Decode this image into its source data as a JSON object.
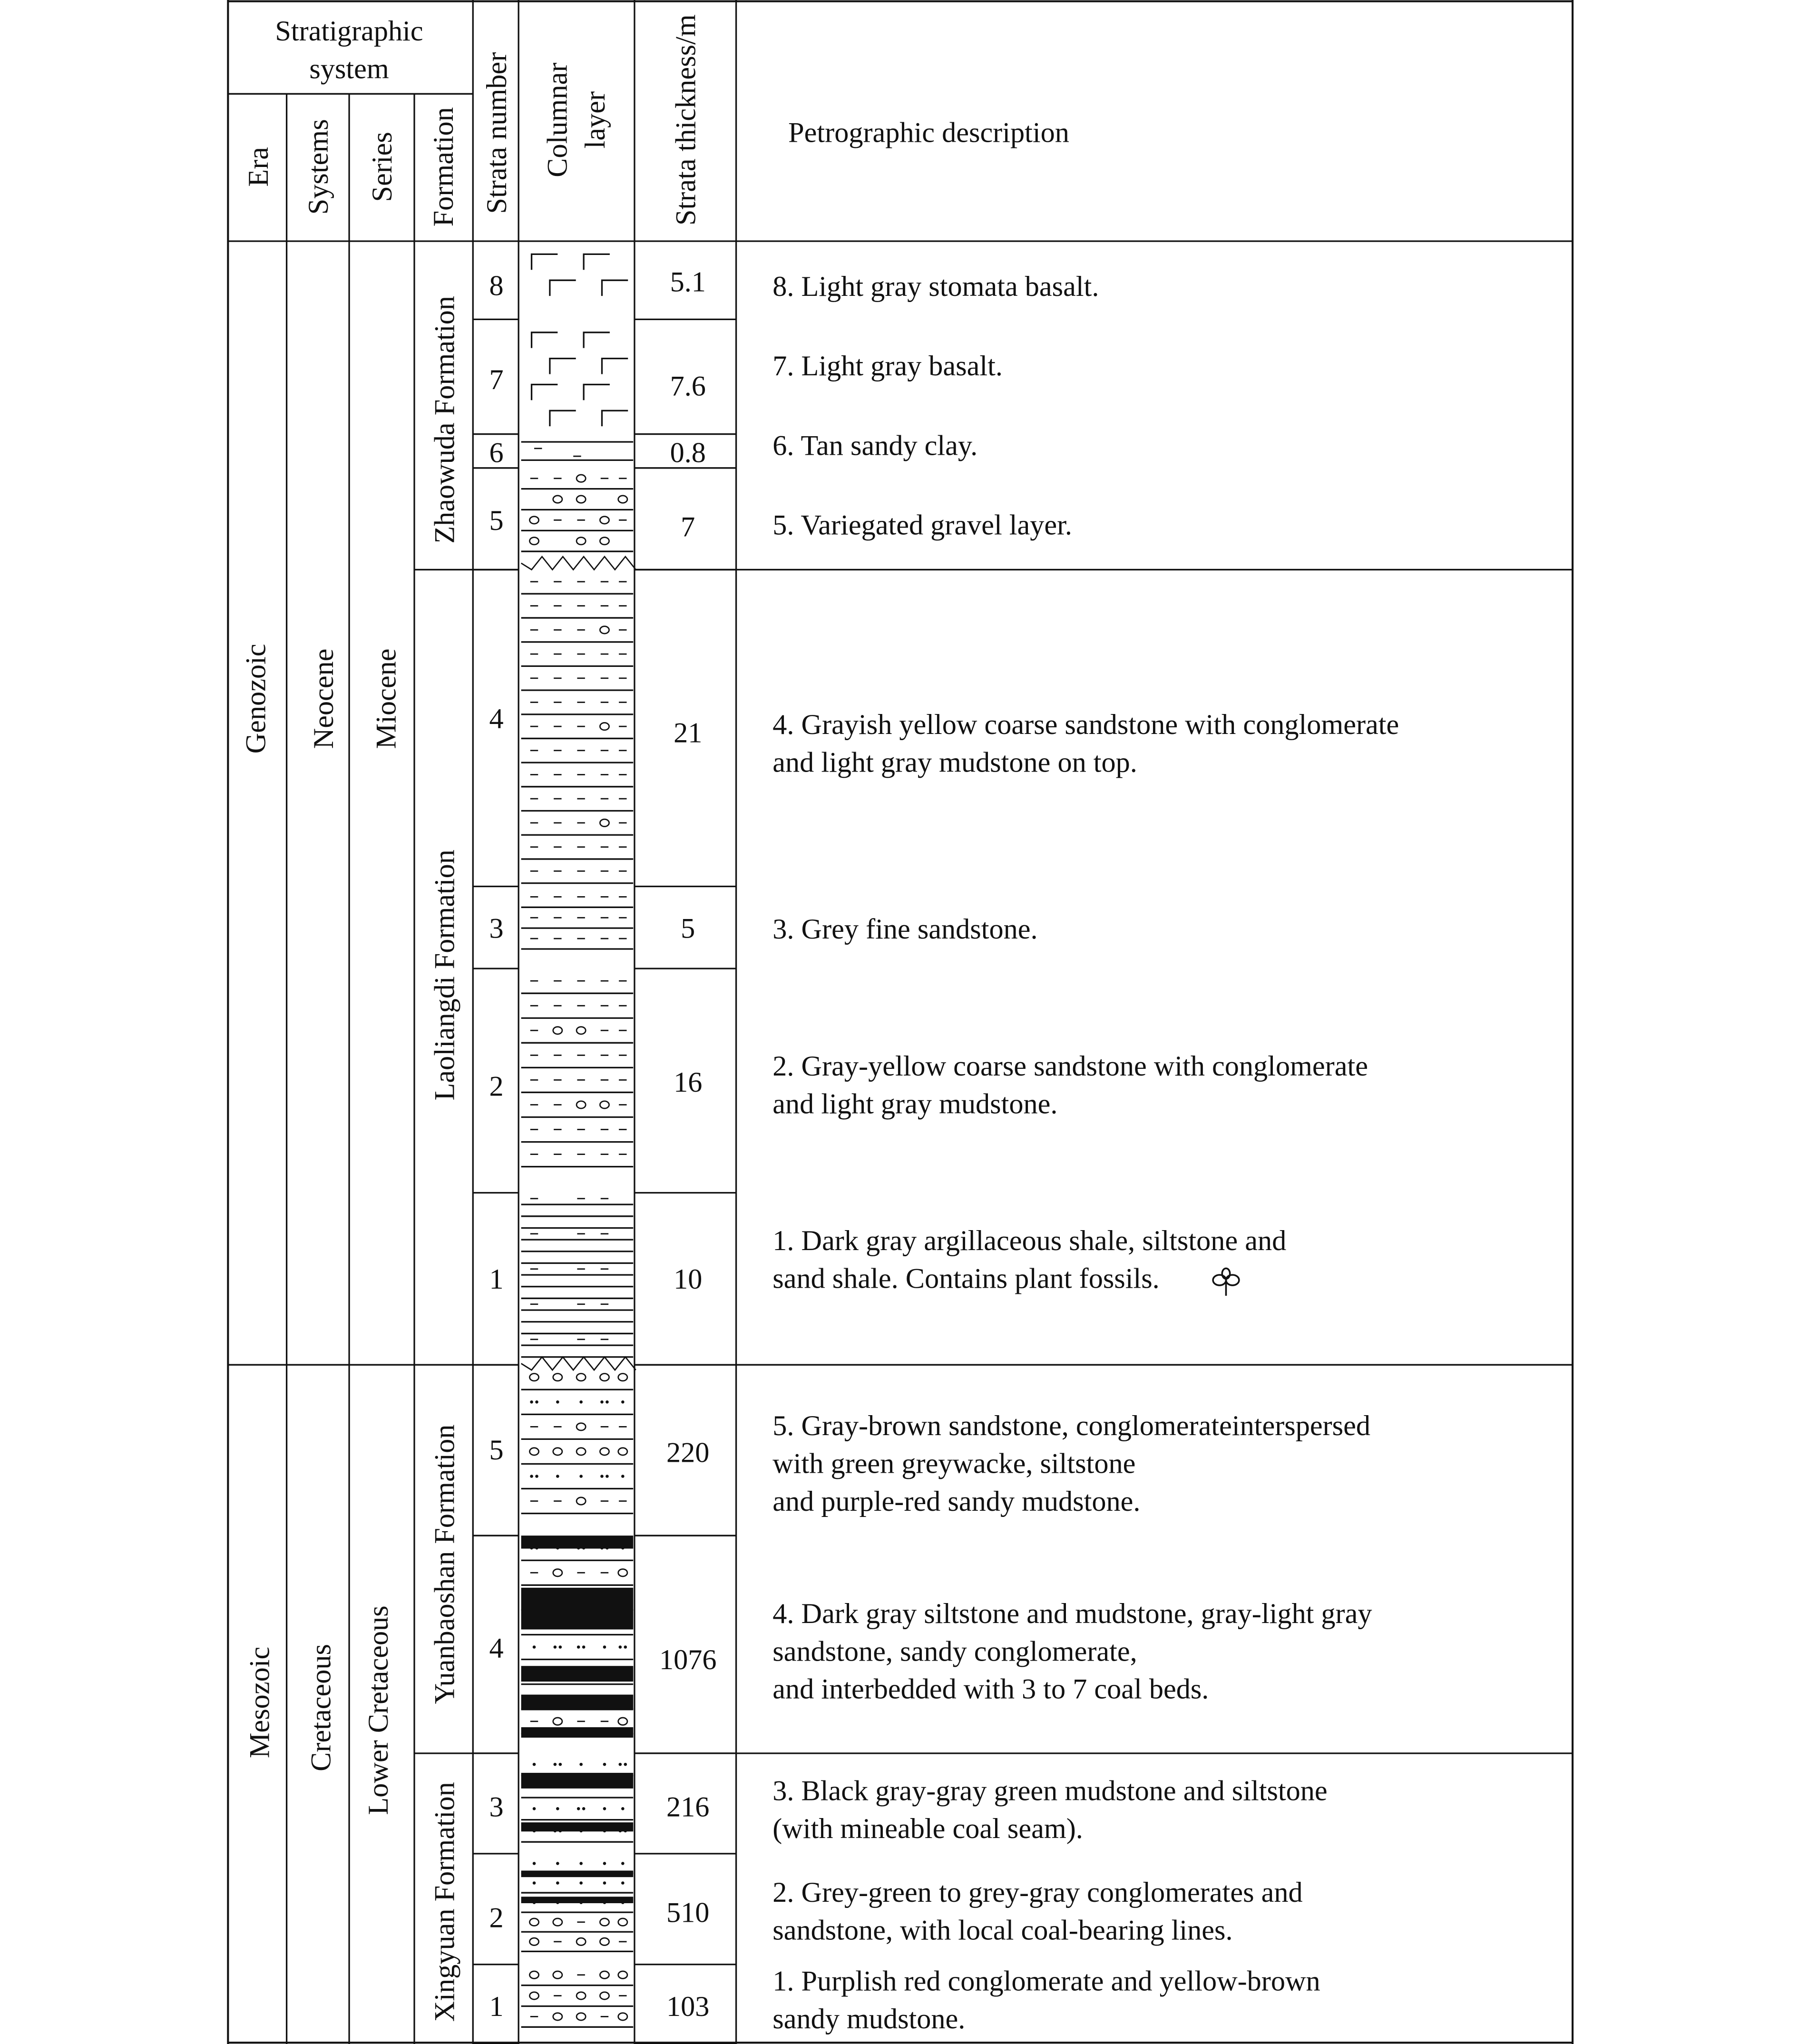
{
  "header": {
    "stratigraphic_system": "Stratigraphic system",
    "era": "Era",
    "systems": "Systems",
    "series": "Series",
    "formation": "Formation",
    "strata_number": "Strata number",
    "columnar_layer": "Columnar layer",
    "strata_thickness": "Strata thickness/m",
    "petrographic_description": "Petrographic description"
  },
  "eras": [
    {
      "era": "Genozoic",
      "system": "Neocene",
      "series": "Miocene"
    },
    {
      "era": "Mesozoic",
      "system": "Cretaceous",
      "series": "Lower Cretaceous"
    }
  ],
  "formations": [
    {
      "name": "Zhaowuda Formation",
      "description": "",
      "layers": [
        {
          "number": "8",
          "thickness": "5.1",
          "lithology_pattern": "stomata-basalt",
          "description": "8. Light gray stomata basalt."
        },
        {
          "number": "7",
          "thickness": "7.6",
          "lithology_pattern": "basalt",
          "description": "7. Light gray basalt."
        },
        {
          "number": "6",
          "thickness": "0.8",
          "lithology_pattern": "sandy-clay",
          "description": "6. Tan sandy clay."
        },
        {
          "number": "5",
          "thickness": "7",
          "lithology_pattern": "gravel",
          "description": "5. Variegated gravel layer."
        }
      ]
    },
    {
      "name": "Laoliangdi Formation",
      "layers": [
        {
          "number": "4",
          "thickness": "21",
          "lithology_pattern": "coarse-sandstone-conglomerate",
          "description": "4. Grayish yellow coarse sandstone with conglomerate\nand light gray mudstone on top."
        },
        {
          "number": "3",
          "thickness": "5",
          "lithology_pattern": "fine-sandstone",
          "description": "3. Grey fine sandstone."
        },
        {
          "number": "2",
          "thickness": "16",
          "lithology_pattern": "coarse-sandstone-conglomerate",
          "description": "2. Gray-yellow coarse sandstone with conglomerate\nand light gray mudstone."
        },
        {
          "number": "1",
          "thickness": "10",
          "lithology_pattern": "shale-with-plant-fossils",
          "description": "1. Dark gray argillaceous shale, siltstone and\nsand shale. Contains plant fossils."
        }
      ]
    },
    {
      "name": "Yuanbaoshan Formation",
      "layers": [
        {
          "number": "5",
          "thickness": "220",
          "lithology_pattern": "sandstone-conglomerate",
          "description": "5. Gray-brown sandstone, conglomerateinterspersed\nwith green greywacke, siltstone\nand purple-red sandy mudstone."
        },
        {
          "number": "4",
          "thickness": "1076",
          "lithology_pattern": "siltstone-mudstone-coal",
          "description": "4. Dark gray siltstone and mudstone, gray-light gray\nsandstone, sandy conglomerate,\nand interbedded with 3 to 7 coal beds."
        }
      ]
    },
    {
      "name": "Xingyuan Formation",
      "layers": [
        {
          "number": "3",
          "thickness": "216",
          "lithology_pattern": "mudstone-siltstone-coal",
          "description": "3. Black gray-gray green mudstone and siltstone\n(with mineable coal seam)."
        },
        {
          "number": "2",
          "thickness": "510",
          "lithology_pattern": "conglomerate-coal-lines",
          "description": "2. Grey-green to grey-gray conglomerates and\nsandstone, with local coal-bearing lines."
        },
        {
          "number": "1",
          "thickness": "103",
          "lithology_pattern": "conglomerate-mudstone",
          "description": "1. Purplish red conglomerate and yellow-brown\nsandy mudstone."
        }
      ]
    }
  ],
  "icons": {
    "plant_fossil": "plant-fossil-icon"
  }
}
